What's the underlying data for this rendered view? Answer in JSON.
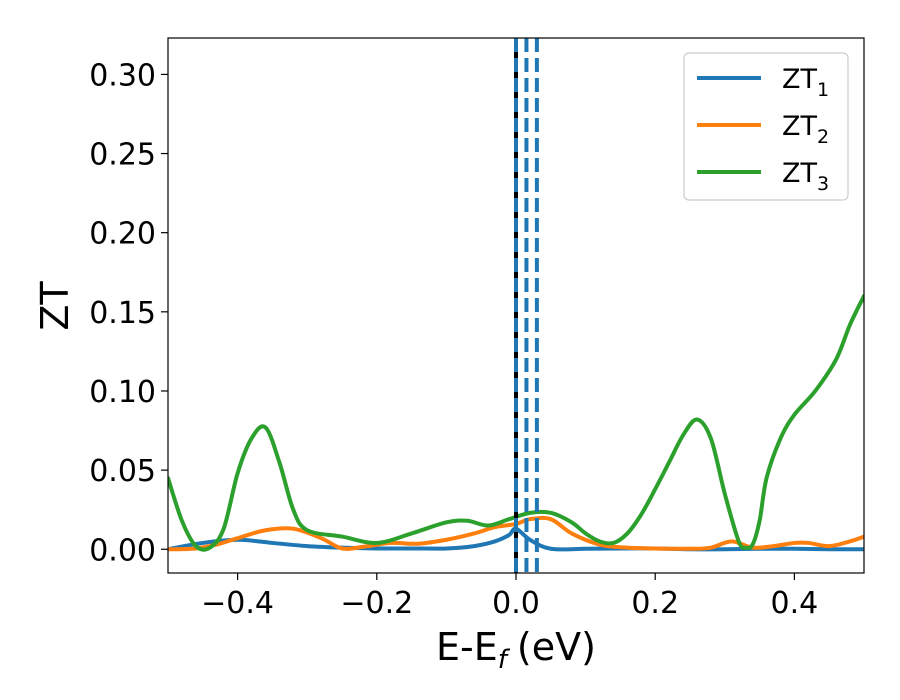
{
  "chart_data": {
    "type": "line",
    "title": "",
    "xlabel": "E-E",
    "xlabel_sub": "f",
    "xlabel_unit": "(eV)",
    "ylabel": "ZT",
    "xlim": [
      -0.5,
      0.5
    ],
    "ylim": [
      -0.015,
      0.323
    ],
    "xticks": [
      -0.4,
      -0.2,
      0.0,
      0.2,
      0.4
    ],
    "xtick_labels": [
      "−0.4",
      "−0.2",
      "0.0",
      "0.2",
      "0.4"
    ],
    "yticks": [
      0.0,
      0.05,
      0.1,
      0.15,
      0.2,
      0.25,
      0.3
    ],
    "ytick_labels": [
      "0.00",
      "0.05",
      "0.10",
      "0.15",
      "0.20",
      "0.25",
      "0.30"
    ],
    "grid": false,
    "legend_position": "top-right",
    "series": [
      {
        "name": "ZT",
        "name_sub": "1",
        "color": "#1f77b4",
        "x": [
          -0.5,
          -0.45,
          -0.4,
          -0.35,
          -0.3,
          -0.25,
          -0.2,
          -0.15,
          -0.1,
          -0.06,
          -0.03,
          -0.01,
          0.0,
          0.02,
          0.05,
          0.1,
          0.15,
          0.2,
          0.25,
          0.3,
          0.35,
          0.4,
          0.45,
          0.5
        ],
        "y": [
          0.0,
          0.004,
          0.006,
          0.004,
          0.002,
          0.001,
          0.0005,
          0.0005,
          0.0005,
          0.002,
          0.005,
          0.009,
          0.013,
          0.006,
          0.0003,
          0.0003,
          0.0005,
          0.0005,
          0.0,
          0.0,
          0.0003,
          0.0003,
          0.0,
          0.0
        ]
      },
      {
        "name": "ZT",
        "name_sub": "2",
        "color": "#ff7f0e",
        "x": [
          -0.5,
          -0.46,
          -0.43,
          -0.4,
          -0.36,
          -0.32,
          -0.28,
          -0.25,
          -0.22,
          -0.18,
          -0.14,
          -0.1,
          -0.06,
          -0.03,
          0.0,
          0.02,
          0.05,
          0.08,
          0.12,
          0.16,
          0.2,
          0.25,
          0.28,
          0.31,
          0.34,
          0.37,
          0.4,
          0.42,
          0.45,
          0.48,
          0.5
        ],
        "y": [
          0.0,
          0.0005,
          0.003,
          0.007,
          0.012,
          0.013,
          0.007,
          0.0005,
          0.0015,
          0.004,
          0.0035,
          0.006,
          0.01,
          0.014,
          0.016,
          0.019,
          0.019,
          0.01,
          0.003,
          0.001,
          0.0005,
          0.0003,
          0.001,
          0.005,
          0.001,
          0.002,
          0.004,
          0.004,
          0.002,
          0.005,
          0.008
        ]
      },
      {
        "name": "ZT",
        "name_sub": "3",
        "color": "#2ca02c",
        "x": [
          -0.5,
          -0.48,
          -0.46,
          -0.44,
          -0.42,
          -0.4,
          -0.38,
          -0.36,
          -0.34,
          -0.32,
          -0.3,
          -0.25,
          -0.2,
          -0.15,
          -0.1,
          -0.07,
          -0.04,
          -0.01,
          0.02,
          0.05,
          0.08,
          0.1,
          0.12,
          0.14,
          0.16,
          0.18,
          0.2,
          0.22,
          0.24,
          0.26,
          0.28,
          0.3,
          0.32,
          0.33,
          0.34,
          0.35,
          0.36,
          0.38,
          0.4,
          0.43,
          0.46,
          0.48,
          0.5
        ],
        "y": [
          0.045,
          0.018,
          0.002,
          0.001,
          0.013,
          0.048,
          0.07,
          0.077,
          0.055,
          0.025,
          0.012,
          0.008,
          0.004,
          0.01,
          0.017,
          0.018,
          0.015,
          0.019,
          0.023,
          0.023,
          0.017,
          0.01,
          0.005,
          0.004,
          0.01,
          0.022,
          0.038,
          0.055,
          0.072,
          0.082,
          0.07,
          0.035,
          0.005,
          0.001,
          0.003,
          0.018,
          0.045,
          0.07,
          0.085,
          0.1,
          0.12,
          0.142,
          0.16
        ]
      }
    ],
    "vlines": [
      {
        "x": 0.0,
        "color": "#000000",
        "style": "solid"
      },
      {
        "x": 0.0,
        "color": "#1f77b4",
        "style": "dashed"
      },
      {
        "x": 0.015,
        "color": "#1f77b4",
        "style": "dashed"
      },
      {
        "x": 0.03,
        "color": "#1f77b4",
        "style": "dashed"
      }
    ]
  }
}
